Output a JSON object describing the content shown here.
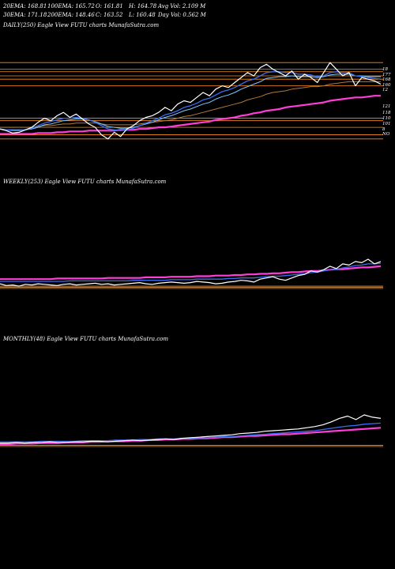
{
  "header": {
    "row1": [
      "20EMA: 168.81",
      "100EMA: 165.72",
      "O: 161.81",
      "H: 164.78",
      "Avg Vol: 2.109 M"
    ],
    "row2": [
      "30EMA: 171.18",
      "200EMA: 148.46",
      "C: 163.52",
      "L: 160.48",
      "Day Vol: 0.562  M"
    ]
  },
  "colors": {
    "background": "#000000",
    "price": "#ffffff",
    "ema20": "#3a6df0",
    "ema30": "#7ec8ff",
    "ema100": "#b07a3a",
    "ema200": "#ff3dd8",
    "levels": "#ff8c1a"
  },
  "chart_data": [
    {
      "type": "line",
      "title": "DAILY(250) Eagle   View  FUTU charts MunafaSutra.com",
      "right_labels": [
        "18",
        "177",
        "168",
        "160",
        "12",
        "121",
        "118",
        "110",
        "101",
        "8",
        "NO"
      ],
      "price": [
        108,
        106,
        103,
        104,
        107,
        110,
        116,
        121,
        118,
        124,
        128,
        122,
        126,
        120,
        114,
        110,
        101,
        96,
        104,
        99,
        108,
        112,
        118,
        122,
        124,
        128,
        134,
        130,
        138,
        142,
        140,
        146,
        152,
        148,
        156,
        160,
        158,
        164,
        170,
        176,
        172,
        182,
        186,
        180,
        176,
        172,
        178,
        168,
        174,
        170,
        164,
        176,
        188,
        180,
        172,
        176,
        160,
        170,
        168,
        166,
        162
      ],
      "ema20": [
        108,
        107,
        106,
        106,
        107,
        109,
        112,
        115,
        117,
        119,
        121,
        121,
        122,
        121,
        119,
        116,
        112,
        108,
        107,
        106,
        107,
        109,
        112,
        115,
        118,
        121,
        125,
        127,
        130,
        134,
        136,
        139,
        143,
        145,
        149,
        153,
        155,
        158,
        162,
        166,
        168,
        172,
        176,
        177,
        177,
        176,
        176,
        174,
        174,
        173,
        171,
        172,
        176,
        177,
        176,
        176,
        172,
        171,
        170,
        169,
        168
      ],
      "ema30": [
        108,
        107,
        107,
        107,
        107,
        108,
        110,
        113,
        114,
        116,
        118,
        119,
        120,
        120,
        119,
        117,
        114,
        111,
        110,
        109,
        109,
        110,
        112,
        114,
        116,
        119,
        122,
        124,
        127,
        130,
        132,
        135,
        138,
        140,
        144,
        147,
        149,
        152,
        156,
        159,
        162,
        165,
        169,
        170,
        171,
        171,
        172,
        171,
        171,
        171,
        170,
        171,
        173,
        174,
        174,
        174,
        172,
        172,
        171,
        171,
        171
      ],
      "ema100": [
        110,
        110,
        110,
        110,
        110,
        110,
        111,
        112,
        112,
        113,
        114,
        114,
        115,
        115,
        115,
        115,
        114,
        113,
        113,
        113,
        113,
        113,
        114,
        115,
        116,
        117,
        118,
        119,
        121,
        123,
        124,
        126,
        128,
        130,
        132,
        134,
        136,
        138,
        140,
        143,
        145,
        147,
        150,
        152,
        153,
        154,
        156,
        157,
        158,
        159,
        159,
        160,
        162,
        163,
        164,
        165,
        165,
        165,
        165,
        165,
        165
      ],
      "ema200": [
        102,
        102,
        102,
        102,
        102,
        102,
        103,
        103,
        103,
        104,
        104,
        105,
        105,
        105,
        106,
        106,
        106,
        106,
        106,
        107,
        107,
        107,
        108,
        108,
        109,
        110,
        110,
        111,
        112,
        113,
        114,
        115,
        116,
        117,
        119,
        120,
        121,
        122,
        124,
        125,
        127,
        128,
        130,
        131,
        132,
        134,
        135,
        136,
        137,
        138,
        139,
        140,
        142,
        143,
        144,
        145,
        146,
        146,
        147,
        148,
        148
      ],
      "levels": [
        188,
        180,
        177,
        172,
        168,
        160,
        121,
        118,
        110,
        101,
        96
      ]
    },
    {
      "type": "line",
      "title": "WEEKLY(253) Eagle   View  FUTU charts MunafaSutra.com",
      "price": [
        58,
        55,
        56,
        54,
        57,
        56,
        58,
        57,
        56,
        55,
        57,
        58,
        56,
        57,
        58,
        59,
        57,
        58,
        56,
        57,
        58,
        59,
        60,
        58,
        57,
        59,
        60,
        61,
        60,
        59,
        60,
        62,
        61,
        60,
        58,
        59,
        61,
        62,
        64,
        63,
        61,
        66,
        68,
        70,
        66,
        64,
        68,
        72,
        74,
        80,
        78,
        82,
        88,
        84,
        92,
        90,
        96,
        94,
        100,
        92,
        96
      ],
      "ema20": [
        62,
        62,
        62,
        62,
        62,
        62,
        62,
        62,
        62,
        62,
        62,
        63,
        63,
        63,
        63,
        63,
        63,
        63,
        63,
        63,
        63,
        64,
        64,
        64,
        64,
        64,
        64,
        65,
        65,
        65,
        65,
        66,
        66,
        66,
        66,
        66,
        67,
        67,
        68,
        68,
        68,
        69,
        70,
        71,
        71,
        72,
        73,
        74,
        75,
        77,
        78,
        80,
        82,
        83,
        85,
        87,
        89,
        90,
        92,
        92,
        93
      ],
      "ema200": [
        66,
        66,
        66,
        66,
        66,
        66,
        66,
        66,
        66,
        67,
        67,
        67,
        67,
        67,
        67,
        67,
        67,
        68,
        68,
        68,
        68,
        68,
        68,
        69,
        69,
        69,
        69,
        70,
        70,
        70,
        70,
        71,
        71,
        71,
        72,
        72,
        72,
        73,
        73,
        74,
        74,
        75,
        75,
        76,
        76,
        77,
        78,
        78,
        79,
        80,
        80,
        81,
        82,
        83,
        83,
        84,
        85,
        86,
        86,
        87,
        88
      ],
      "levels": [
        50,
        52,
        54
      ]
    },
    {
      "type": "line",
      "title": "MONTHLY(48) Eagle   View  FUTU charts MunafaSutra.com",
      "price": [
        40,
        40,
        41,
        40,
        41,
        41,
        42,
        41,
        41,
        42,
        42,
        43,
        43,
        42,
        43,
        44,
        45,
        44,
        45,
        46,
        47,
        46,
        48,
        49,
        50,
        51,
        52,
        53,
        54,
        56,
        57,
        58,
        60,
        61,
        62,
        63,
        64,
        66,
        68,
        71,
        76,
        82,
        86,
        80,
        88,
        84,
        82
      ],
      "ema20": [
        42,
        42,
        42,
        42,
        42,
        43,
        43,
        43,
        43,
        43,
        44,
        44,
        44,
        44,
        45,
        45,
        45,
        46,
        46,
        47,
        47,
        47,
        48,
        48,
        49,
        49,
        50,
        51,
        51,
        52,
        53,
        54,
        55,
        56,
        57,
        58,
        59,
        60,
        61,
        63,
        65,
        67,
        69,
        70,
        72,
        73,
        74
      ],
      "ema200": [
        38,
        38,
        39,
        39,
        39,
        40,
        40,
        40,
        41,
        41,
        41,
        42,
        42,
        43,
        43,
        43,
        44,
        44,
        45,
        45,
        46,
        46,
        47,
        47,
        48,
        48,
        49,
        50,
        50,
        51,
        52,
        52,
        53,
        54,
        55,
        55,
        56,
        57,
        58,
        59,
        60,
        61,
        62,
        63,
        64,
        65,
        66
      ],
      "levels": [
        34,
        36
      ]
    }
  ]
}
